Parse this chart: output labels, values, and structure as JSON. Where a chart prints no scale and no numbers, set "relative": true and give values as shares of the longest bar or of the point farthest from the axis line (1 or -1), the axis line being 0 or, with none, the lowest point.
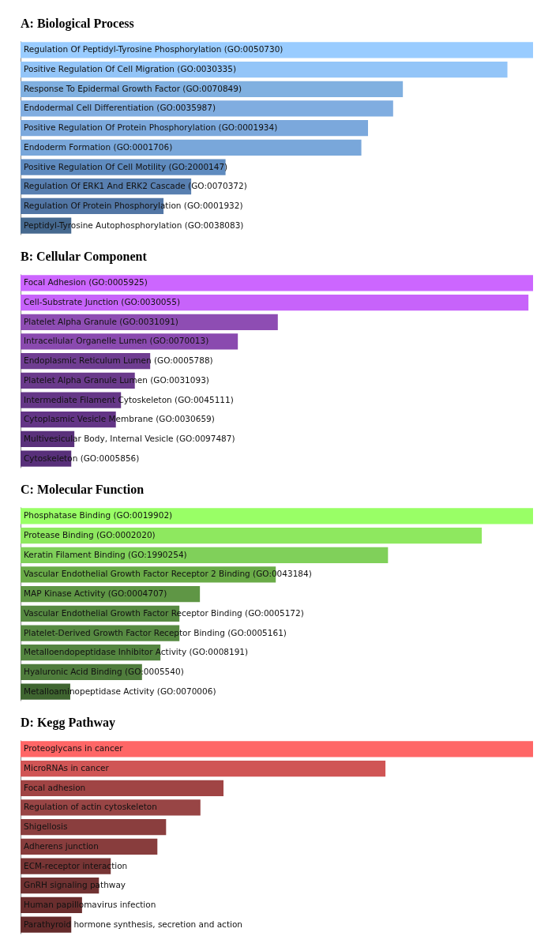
{
  "chart_data": [
    {
      "type": "bar",
      "title": "A: Biological Process",
      "orientation": "horizontal",
      "relative": true,
      "categories": [
        "Regulation Of Peptidyl-Tyrosine Phosphorylation (GO:0050730)",
        "Positive Regulation Of Cell Migration (GO:0030335)",
        "Response To Epidermal Growth Factor (GO:0070849)",
        "Endodermal Cell Differentiation (GO:0035987)",
        "Positive Regulation Of Protein Phosphorylation (GO:0001934)",
        "Endoderm Formation (GO:0001706)",
        "Positive Regulation Of Cell Motility (GO:2000147)",
        "Regulation Of ERK1 And ERK2 Cascade (GO:0070372)",
        "Regulation Of Protein Phosphorylation (GO:0001932)",
        "Peptidyl-Tyrosine Autophosphorylation (GO:0038083)"
      ],
      "values": [
        1,
        0.95,
        0.746,
        0.727,
        0.678,
        0.665,
        0.4,
        0.333,
        0.279,
        0.099
      ],
      "colors": [
        "#99ccff",
        "#93c5f8",
        "#80b0e0",
        "#80ade0",
        "#7ba8dc",
        "#79a7da",
        "#5f8bbf",
        "#587fb0",
        "#5276a5",
        "#46698f"
      ]
    },
    {
      "type": "bar",
      "title": "B: Cellular Component",
      "orientation": "horizontal",
      "relative": true,
      "categories": [
        "Focal Adhesion (GO:0005925)",
        "Cell-Substrate Junction (GO:0030055)",
        "Platelet Alpha Granule (GO:0031091)",
        "Intracellular Organelle Lumen (GO:0070013)",
        "Endoplasmic Reticulum Lumen (GO:0005788)",
        "Platelet Alpha Granule Lumen (GO:0031093)",
        "Intermediate Filament Cytoskeleton (GO:0045111)",
        "Cytoplasmic Vesicle Membrane (GO:0030659)",
        "Multivesicular Body, Internal Vesicle (GO:0097487)",
        "Cytoskeleton (GO:0005856)"
      ],
      "values": [
        1,
        0.991,
        0.502,
        0.424,
        0.253,
        0.223,
        0.196,
        0.186,
        0.105,
        0.099
      ],
      "colors": [
        "#cc66ff",
        "#c763fa",
        "#8e4db3",
        "#8a4aaf",
        "#6f3d91",
        "#6a3a8b",
        "#653787",
        "#633586",
        "#5a317b",
        "#58307a"
      ]
    },
    {
      "type": "bar",
      "title": "C: Molecular Function",
      "orientation": "horizontal",
      "relative": true,
      "categories": [
        "Phosphatase Binding (GO:0019902)",
        "Protease Binding (GO:0002020)",
        "Keratin Filament Binding (GO:1990254)",
        "Vascular Endothelial Growth Factor Receptor 2 Binding (GO:0043184)",
        "MAP Kinase Activity (GO:0004707)",
        "Vascular Endothelial Growth Factor Receptor Binding (GO:0005172)",
        "Platelet-Derived Growth Factor Receptor Binding (GO:0005161)",
        "Metalloendopeptidase Inhibitor Activity (GO:0008191)",
        "Hyaluronic Acid Binding (GO:0005540)",
        "Metalloaminopeptidase Activity (GO:0070006)"
      ],
      "values": [
        1,
        0.9,
        0.717,
        0.498,
        0.35,
        0.31,
        0.31,
        0.273,
        0.237,
        0.097
      ],
      "colors": [
        "#99ff66",
        "#8ee85f",
        "#80d05a",
        "#6aab48",
        "#5f9645",
        "#578a42",
        "#578a42",
        "#548540",
        "#4f7c3c",
        "#3f6530"
      ]
    },
    {
      "type": "bar",
      "title": "D: Kegg Pathway",
      "orientation": "horizontal",
      "relative": true,
      "categories": [
        "Proteoglycans in cancer",
        "MicroRNAs in cancer",
        "Focal adhesion",
        "Regulation of actin cytoskeleton",
        "Shigellosis",
        "Adherens junction",
        "ECM-receptor interaction",
        "GnRH signaling pathway",
        "Human papillomavirus infection",
        "Parathyroid hormone synthesis, secretion and action"
      ],
      "values": [
        1,
        0.712,
        0.396,
        0.351,
        0.284,
        0.267,
        0.176,
        0.153,
        0.12,
        0.099
      ],
      "colors": [
        "#ff6666",
        "#d05555",
        "#a04444",
        "#984545",
        "#8a3e3e",
        "#883d3d",
        "#773535",
        "#703232",
        "#6a2e2e",
        "#642b2b"
      ]
    }
  ]
}
